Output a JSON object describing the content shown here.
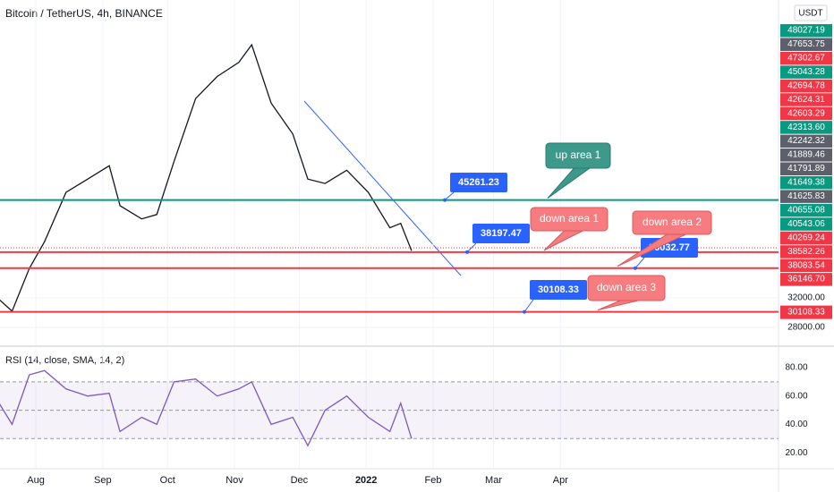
{
  "chart_data": [
    {
      "type": "line",
      "title": "Bitcoin / TetherUS, 4h, BINANCE",
      "currency": "USDT",
      "color": "#131722",
      "x": [
        14,
        20,
        28,
        35,
        45,
        55,
        65,
        70,
        80,
        87,
        95,
        105,
        115,
        125,
        131,
        140,
        150,
        157,
        165,
        175,
        185,
        195,
        200,
        205
      ],
      "values": [
        31800,
        30200,
        36000,
        39600,
        46300,
        48100,
        49900,
        44500,
        42700,
        43300,
        50500,
        59000,
        62000,
        63900,
        66300,
        58400,
        54200,
        48100,
        47500,
        49300,
        46300,
        41500,
        42100,
        38400
      ],
      "xlim": [
        14.4,
        375
      ],
      "xticks": [
        {
          "value": 31,
          "label": "Aug"
        },
        {
          "value": 62,
          "label": "Sep"
        },
        {
          "value": 92,
          "label": "Oct"
        },
        {
          "value": 123,
          "label": "Nov"
        },
        {
          "value": 153,
          "label": "Dec"
        },
        {
          "value": 184,
          "label": "2022"
        },
        {
          "value": 215,
          "label": "Feb"
        },
        {
          "value": 243,
          "label": "Mar"
        },
        {
          "value": 274,
          "label": "Apr"
        }
      ],
      "ylim": [
        25698,
        72360
      ],
      "yticks": [
        {
          "value": 28000,
          "label": "28000.00"
        },
        {
          "value": 32000,
          "label": "32000.00"
        }
      ],
      "hlines": [
        {
          "value": 45261.23,
          "color": "#089981",
          "note": "up area 1"
        },
        {
          "value": 38197.47,
          "color": "#f23645",
          "note": "down area 1"
        },
        {
          "value": 36032.77,
          "color": "#f23645",
          "note": "down area 2"
        },
        {
          "value": 30108.33,
          "color": "#f23645",
          "note": "down area 3"
        }
      ],
      "price_labels": [
        {
          "text": "48027.19",
          "color": "#089981"
        },
        {
          "text": "47653.75",
          "color": "#5d606b"
        },
        {
          "text": "47302.67",
          "color": "#f23645"
        },
        {
          "text": "45043.28",
          "color": "#089981"
        },
        {
          "text": "42694.78",
          "color": "#f23645"
        },
        {
          "text": "42624.31",
          "color": "#f23645"
        },
        {
          "text": "42603.29",
          "color": "#f23645"
        },
        {
          "text": "42313.60",
          "color": "#089981"
        },
        {
          "text": "42242.32",
          "color": "#5d606b"
        },
        {
          "text": "41889.46",
          "color": "#5d606b"
        },
        {
          "text": "41791.89",
          "color": "#5d606b"
        },
        {
          "text": "41649.38",
          "color": "#089981"
        },
        {
          "text": "41625.83",
          "color": "#5d606b"
        },
        {
          "text": "40655.08",
          "color": "#089981"
        },
        {
          "text": "40543.06",
          "color": "#089981"
        },
        {
          "text": "40269.24",
          "color": "#f23645"
        },
        {
          "text": "38582.26",
          "color": "#f23645"
        },
        {
          "text": "38083.54",
          "color": "#f23645"
        },
        {
          "text": "36146.70",
          "color": "#f23645"
        }
      ]
    },
    {
      "type": "line",
      "title": "RSI (14, close, SMA, 14, 2)",
      "color": "#7e57c2",
      "x": [
        14,
        20,
        28,
        35,
        45,
        55,
        65,
        70,
        80,
        87,
        95,
        105,
        115,
        125,
        131,
        140,
        150,
        157,
        165,
        175,
        185,
        195,
        200,
        205
      ],
      "values": [
        55,
        40,
        75,
        78,
        65,
        60,
        62,
        35,
        45,
        40,
        70,
        72,
        60,
        65,
        70,
        40,
        45,
        25,
        50,
        60,
        45,
        35,
        55,
        30
      ],
      "ylim": [
        10,
        92
      ],
      "yticks": [
        {
          "value": 80,
          "label": "80.00"
        },
        {
          "value": 60,
          "label": "60.00"
        },
        {
          "value": 40,
          "label": "40.00"
        },
        {
          "value": 20,
          "label": "20.00"
        }
      ],
      "bands": [
        70,
        50,
        30
      ]
    }
  ]
}
